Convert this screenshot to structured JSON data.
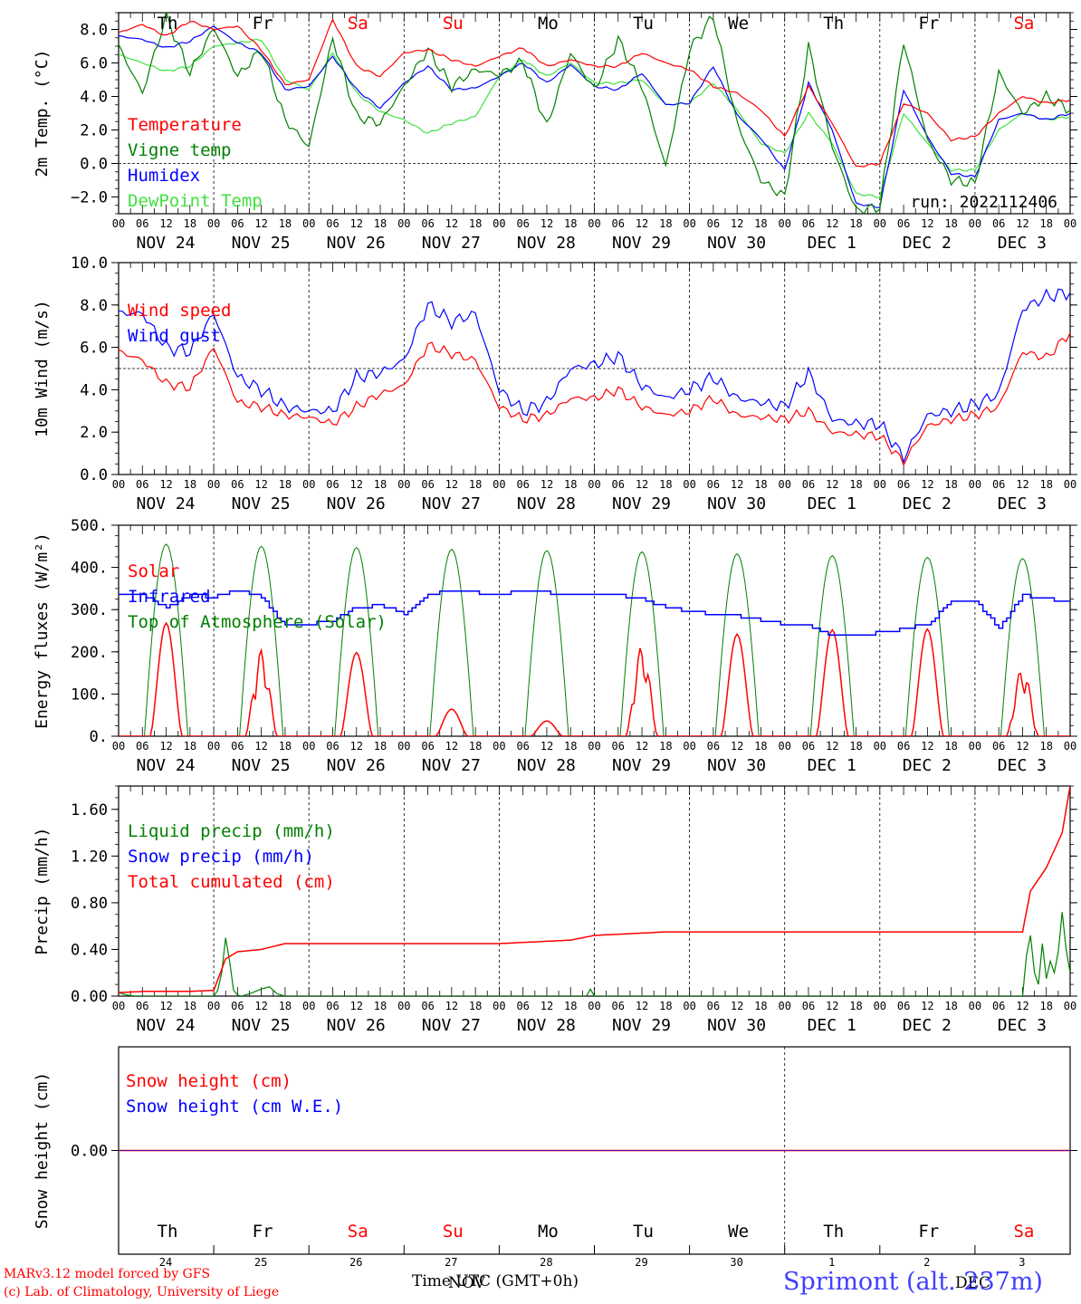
{
  "chart_data": [
    {
      "type": "line",
      "ylabel": "2m Temp. (°C)",
      "ylim": [
        -3,
        9
      ],
      "yticks": [
        -2.0,
        0.0,
        2.0,
        4.0,
        6.0,
        8.0
      ],
      "ytick_labels": [
        "−2.0",
        "0.0",
        "2.0",
        "4.0",
        "6.0",
        "8.0"
      ],
      "reference_line": 0,
      "run_label": "run: 2022112406",
      "legend": [
        "Temperature",
        "Vigne temp",
        "Humidex",
        "DewPoint Temp"
      ],
      "series": [
        {
          "name": "Temperature",
          "color": "#ff0000",
          "x_hours": [
            0,
            6,
            12,
            18,
            24,
            30,
            36,
            42,
            48,
            54,
            60,
            66,
            72,
            78,
            84,
            90,
            96,
            102,
            108,
            114,
            120,
            126,
            132,
            138,
            144,
            150,
            156,
            162,
            168,
            174,
            180,
            186,
            192,
            198,
            204,
            210,
            216,
            222,
            228,
            234,
            240
          ],
          "values": [
            7.8,
            8.3,
            7.6,
            8.5,
            8.0,
            8.2,
            6.8,
            4.7,
            5.0,
            8.6,
            5.8,
            5.2,
            6.6,
            6.8,
            6.2,
            5.8,
            6.4,
            6.9,
            5.8,
            6.2,
            5.8,
            5.8,
            6.6,
            6.0,
            5.6,
            4.6,
            4.2,
            3.2,
            1.6,
            4.6,
            2.4,
            -0.2,
            0.0,
            3.6,
            3.0,
            1.4,
            1.6,
            3.0,
            4.0,
            3.6,
            3.8
          ]
        },
        {
          "name": "Vigne temp",
          "color": "#008000",
          "x_hours": [
            0,
            6,
            12,
            18,
            24,
            30,
            36,
            42,
            48,
            54,
            60,
            66,
            72,
            78,
            84,
            90,
            96,
            102,
            108,
            114,
            120,
            126,
            132,
            138,
            144,
            150,
            156,
            162,
            168,
            174,
            180,
            186,
            192,
            198,
            204,
            210,
            216,
            222,
            228,
            234,
            240
          ],
          "values": [
            7.0,
            4.2,
            8.8,
            5.4,
            8.1,
            5.2,
            6.8,
            2.6,
            1.0,
            7.5,
            2.8,
            2.4,
            4.6,
            6.8,
            4.6,
            5.6,
            5.3,
            6.1,
            2.2,
            6.6,
            4.4,
            7.4,
            4.6,
            -0.2,
            6.8,
            8.8,
            2.4,
            -1.0,
            -2.0,
            7.0,
            1.0,
            -2.8,
            -2.6,
            7.3,
            1.4,
            -1.0,
            -1.2,
            5.4,
            3.0,
            4.0,
            3.2
          ]
        },
        {
          "name": "Humidex",
          "color": "#0000ff",
          "x_hours": [
            0,
            6,
            12,
            18,
            24,
            30,
            36,
            42,
            48,
            54,
            60,
            66,
            72,
            78,
            84,
            90,
            96,
            102,
            108,
            114,
            120,
            126,
            132,
            138,
            144,
            150,
            156,
            162,
            168,
            174,
            180,
            186,
            192,
            198,
            204,
            210,
            216,
            222,
            228,
            234,
            240
          ],
          "values": [
            7.6,
            7.4,
            6.9,
            7.3,
            8.2,
            7.2,
            6.6,
            4.4,
            4.6,
            6.4,
            4.4,
            3.3,
            4.8,
            5.8,
            4.4,
            4.5,
            5.2,
            6.0,
            4.8,
            5.9,
            4.6,
            4.4,
            5.4,
            3.5,
            3.6,
            5.8,
            2.9,
            1.5,
            -0.4,
            4.8,
            2.0,
            -2.4,
            -2.6,
            4.4,
            1.6,
            -0.6,
            -0.8,
            2.6,
            3.0,
            2.6,
            3.0
          ]
        },
        {
          "name": "DewPoint Temp",
          "color": "#40e040",
          "x_hours": [
            0,
            6,
            12,
            18,
            24,
            30,
            36,
            42,
            48,
            54,
            60,
            66,
            72,
            78,
            84,
            90,
            96,
            102,
            108,
            114,
            120,
            126,
            132,
            138,
            144,
            150,
            156,
            162,
            168,
            174,
            180,
            186,
            192,
            198,
            204,
            210,
            216,
            222,
            228,
            234,
            240
          ],
          "values": [
            6.5,
            6.0,
            5.5,
            5.8,
            7.0,
            7.2,
            7.4,
            5.0,
            4.4,
            6.6,
            4.2,
            3.1,
            2.6,
            1.8,
            2.4,
            2.8,
            5.2,
            6.2,
            5.2,
            6.0,
            4.8,
            4.8,
            5.0,
            3.5,
            3.6,
            4.8,
            3.2,
            1.2,
            0.6,
            3.0,
            1.2,
            -1.8,
            -2.0,
            3.0,
            1.2,
            -0.4,
            -0.4,
            2.0,
            3.0,
            2.6,
            2.8
          ]
        }
      ]
    },
    {
      "type": "line",
      "ylabel": "10m Wind (m/s)",
      "ylim": [
        0,
        10
      ],
      "yticks": [
        0,
        2,
        4,
        6,
        8,
        10
      ],
      "ytick_labels": [
        "0.0",
        "2.0",
        "4.0",
        "6.0",
        "8.0",
        "10.0"
      ],
      "reference_line": 5,
      "legend": [
        "Wind speed",
        "Wind gust"
      ],
      "series": [
        {
          "name": "Wind speed",
          "color": "#ff0000",
          "x_hours": [
            0,
            6,
            12,
            18,
            24,
            30,
            36,
            42,
            48,
            54,
            60,
            66,
            72,
            78,
            84,
            90,
            96,
            102,
            108,
            114,
            120,
            126,
            132,
            138,
            144,
            150,
            156,
            162,
            168,
            174,
            180,
            186,
            192,
            198,
            204,
            210,
            216,
            222,
            228,
            234,
            240
          ],
          "values": [
            5.8,
            5.4,
            4.3,
            4.1,
            6.0,
            3.4,
            3.2,
            2.8,
            2.7,
            2.4,
            3.2,
            3.8,
            4.2,
            6.1,
            5.7,
            5.4,
            3.2,
            2.6,
            2.8,
            3.6,
            3.6,
            4.0,
            3.2,
            2.8,
            3.0,
            3.6,
            2.8,
            2.7,
            2.6,
            3.0,
            2.0,
            1.9,
            1.8,
            0.6,
            2.3,
            2.6,
            2.8,
            3.2,
            5.8,
            5.5,
            6.7
          ]
        },
        {
          "name": "Wind gust",
          "color": "#0000ff",
          "x_hours": [
            0,
            6,
            12,
            18,
            24,
            30,
            36,
            42,
            48,
            54,
            60,
            66,
            72,
            78,
            84,
            90,
            96,
            102,
            108,
            114,
            120,
            126,
            132,
            138,
            144,
            150,
            156,
            162,
            168,
            174,
            180,
            186,
            192,
            198,
            204,
            210,
            216,
            222,
            228,
            234,
            240
          ],
          "values": [
            7.6,
            7.6,
            6.0,
            5.8,
            7.6,
            4.6,
            4.0,
            3.2,
            3.0,
            3.0,
            4.6,
            4.8,
            5.4,
            8.0,
            7.2,
            7.6,
            4.0,
            3.0,
            3.4,
            5.0,
            5.2,
            5.6,
            4.2,
            3.6,
            4.0,
            4.6,
            3.6,
            3.4,
            3.2,
            4.8,
            2.6,
            2.4,
            2.4,
            0.8,
            2.8,
            3.0,
            3.3,
            3.8,
            7.8,
            8.4,
            8.6
          ]
        }
      ]
    },
    {
      "type": "line",
      "ylabel": "Energy fluxes (W/m²)",
      "ylim": [
        0,
        500
      ],
      "yticks": [
        0,
        100,
        200,
        300,
        400,
        500
      ],
      "ytick_labels": [
        "0.",
        "100.",
        "200.",
        "300.",
        "400.",
        "500."
      ],
      "legend": [
        "Solar",
        "Infrared",
        "Top of Atmosphere (Solar)"
      ],
      "toa_daily_peaks": [
        455,
        450,
        447,
        443,
        440,
        437,
        432,
        428,
        424,
        421
      ],
      "solar_daily_peaks": [
        268,
        205,
        198,
        64,
        36,
        215,
        242,
        252,
        254,
        165
      ],
      "series": [
        {
          "name": "Infrared",
          "color": "#0000ff",
          "x_hours": [
            0,
            6,
            12,
            18,
            24,
            30,
            36,
            42,
            48,
            54,
            60,
            66,
            72,
            78,
            84,
            90,
            96,
            102,
            108,
            114,
            120,
            126,
            132,
            138,
            144,
            150,
            156,
            162,
            168,
            174,
            180,
            186,
            192,
            198,
            204,
            210,
            216,
            222,
            228,
            234,
            240
          ],
          "values": [
            335,
            335,
            305,
            335,
            330,
            345,
            330,
            260,
            265,
            275,
            305,
            310,
            290,
            335,
            345,
            340,
            335,
            345,
            340,
            335,
            335,
            335,
            325,
            305,
            295,
            290,
            285,
            275,
            265,
            260,
            240,
            240,
            245,
            255,
            265,
            320,
            320,
            255,
            335,
            325,
            320
          ]
        }
      ]
    },
    {
      "type": "line",
      "ylabel": "Precip (mm/h)",
      "ylim": [
        0,
        1.8
      ],
      "yticks": [
        0,
        0.4,
        0.8,
        1.2,
        1.6
      ],
      "ytick_labels": [
        "0.00",
        "0.40",
        "0.80",
        "1.20",
        "1.60"
      ],
      "legend": [
        "Liquid precip (mm/h)",
        "Snow precip (mm/h)",
        "Total cumulated (cm)"
      ],
      "series": [
        {
          "name": "Total cumulated (cm)",
          "color": "#ff0000",
          "x_hours": [
            0,
            6,
            12,
            18,
            24,
            27,
            30,
            36,
            42,
            48,
            96,
            102,
            108,
            114,
            120,
            126,
            132,
            138,
            144,
            192,
            216,
            228,
            230,
            234,
            238,
            240
          ],
          "values": [
            0.03,
            0.04,
            0.04,
            0.04,
            0.05,
            0.32,
            0.38,
            0.4,
            0.45,
            0.45,
            0.45,
            0.46,
            0.47,
            0.48,
            0.52,
            0.53,
            0.54,
            0.55,
            0.55,
            0.55,
            0.55,
            0.55,
            0.9,
            1.1,
            1.4,
            1.8
          ]
        },
        {
          "name": "Liquid precip (mm/h)",
          "color": "#008000",
          "x_hours": [
            0,
            2,
            4,
            24,
            25,
            26,
            27,
            28,
            29,
            30,
            31,
            33,
            36,
            38,
            40,
            42,
            44,
            108,
            118,
            119,
            120,
            228,
            229,
            230,
            231,
            232,
            233,
            234,
            235,
            236,
            237,
            238,
            239,
            240
          ],
          "values": [
            0.03,
            0.01,
            0,
            0,
            0.05,
            0.2,
            0.5,
            0.3,
            0.05,
            0.01,
            0,
            0.02,
            0.06,
            0.08,
            0.02,
            0,
            0,
            0,
            0,
            0.06,
            0,
            0,
            0.35,
            0.52,
            0.2,
            0.1,
            0.45,
            0.15,
            0.3,
            0.2,
            0.38,
            0.72,
            0.4,
            0.2
          ]
        }
      ]
    },
    {
      "type": "line",
      "ylabel": "Snow height (cm)",
      "yticks": [
        0
      ],
      "ytick_labels": [
        "0.00"
      ],
      "legend": [
        "Snow height (cm)",
        "Snow height (cm W.E.)"
      ],
      "series": [
        {
          "name": "Snow height (cm)",
          "color": "#ff0000",
          "x_hours": [
            0,
            240
          ],
          "values": [
            0,
            0
          ]
        },
        {
          "name": "Snow height (cm W.E.)",
          "color": "#0000ff",
          "x_hours": [
            0,
            240
          ],
          "values": [
            0,
            0
          ]
        }
      ]
    }
  ],
  "day_names": [
    "Th",
    "Fr",
    "Sa",
    "Su",
    "Mo",
    "Tu",
    "We",
    "Th",
    "Fr",
    "Sa"
  ],
  "weekend_flags": [
    false,
    false,
    true,
    true,
    false,
    false,
    false,
    false,
    false,
    true
  ],
  "date_labels": [
    "NOV 24",
    "NOV 25",
    "NOV 26",
    "NOV 27",
    "NOV 28",
    "NOV 29",
    "NOV 30",
    "DEC  1",
    "DEC  2",
    "DEC  3"
  ],
  "hour_ticks": [
    "00",
    "06",
    "12",
    "18"
  ],
  "bottom_day_numbers": [
    "24",
    "25",
    "26",
    "27",
    "28",
    "29",
    "30",
    "1",
    "2",
    "3"
  ],
  "month_overlay": [
    "NOV",
    "DEC"
  ],
  "x_axis_title": "Time UTC (GMT+0h)",
  "station": "Sprimont (alt. 237m)",
  "credit_line1": "MARv3.12 model forced by GFS",
  "credit_line2": "(c) Lab. of Climatology, University of Liege",
  "colors": {
    "red": "#ff0000",
    "green": "#008000",
    "blue": "#0000ff",
    "lightgreen": "#40e040",
    "station": "#4040ff"
  }
}
